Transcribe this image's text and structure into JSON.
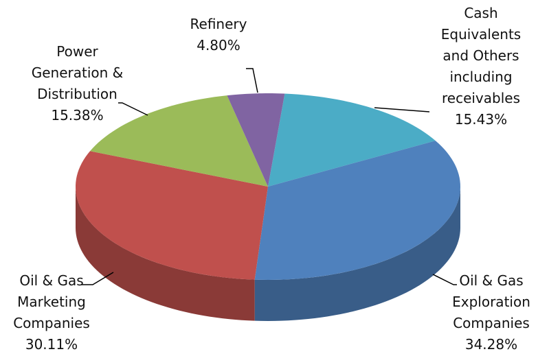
{
  "chart_data": {
    "type": "pie",
    "categories": [
      "Cash Equivalents and Others including receivables",
      "Oil & Gas Exploration Companies",
      "Oil & Gas Marketing Companies",
      "Power Generation & Distribution",
      "Refinery"
    ],
    "values": [
      15.43,
      34.28,
      30.11,
      15.38,
      4.8
    ],
    "value_labels": [
      "15.43%",
      "34.28%",
      "30.11%",
      "15.38%",
      "4.80%"
    ],
    "colors": [
      "#4bacc6",
      "#4f81bd",
      "#c0504d",
      "#9bbb59",
      "#8064a2"
    ]
  }
}
